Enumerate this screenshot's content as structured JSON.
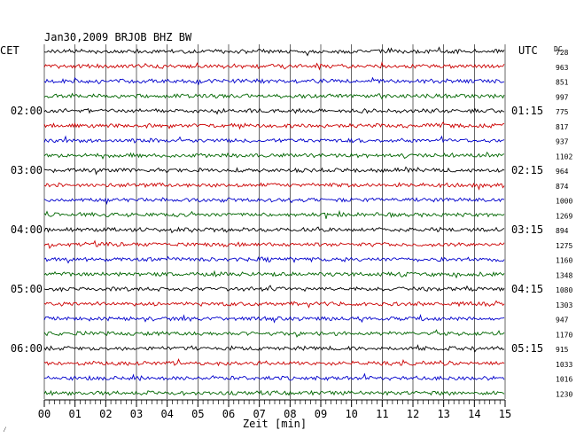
{
  "chart_data": {
    "type": "line",
    "title": "Jan30,2009   BRJOB BHZ BW",
    "xlabel": "Zeit [min]",
    "xlim": [
      0,
      15
    ],
    "x_ticks": [
      "00",
      "01",
      "02",
      "03",
      "04",
      "05",
      "06",
      "07",
      "08",
      "09",
      "10",
      "11",
      "12",
      "13",
      "14",
      "15"
    ],
    "left_axis_title": "CET",
    "right_axis_title": "UTC",
    "dc_label": "DC",
    "left_hour_labels": [
      "02:00",
      "03:00",
      "04:00",
      "05:00",
      "06:00"
    ],
    "right_hour_labels": [
      "01:15",
      "02:15",
      "03:15",
      "04:15",
      "05:15"
    ],
    "dc_values": [
      "728",
      "963",
      "851",
      "997",
      "775",
      "817",
      "937",
      "1102",
      "964",
      "874",
      "1000",
      "1269",
      "894",
      "1275",
      "1160",
      "1348",
      "1080",
      "1303",
      "947",
      "1170",
      "915",
      "1033",
      "1016",
      "1230"
    ],
    "trace_colors": [
      "#000000",
      "#cc0000",
      "#0000cc",
      "#006600"
    ],
    "num_traces": 24,
    "grid": true
  },
  "corner_mark": "⁄"
}
